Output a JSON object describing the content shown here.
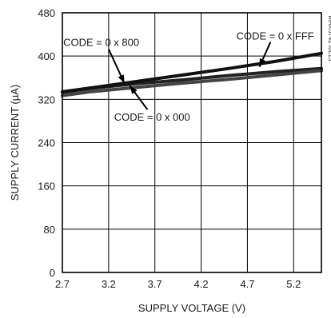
{
  "figure_id": "MAX5742 toc13",
  "chart_data": {
    "type": "line",
    "title": "",
    "xlabel": "SUPPLY VOLTAGE (V)",
    "ylabel": "SUPPLY CURRENT (µA)",
    "xlim": [
      2.7,
      5.5
    ],
    "ylim": [
      0,
      480
    ],
    "xticks": [
      2.7,
      3.2,
      3.7,
      4.2,
      4.7,
      5.2
    ],
    "xtick_labels": [
      "2.7",
      "3.2",
      "3.7",
      "4.2",
      "4.7",
      "5.2"
    ],
    "yticks": [
      0,
      80,
      160,
      240,
      320,
      400,
      480
    ],
    "ytick_labels": [
      "0",
      "80",
      "160",
      "240",
      "320",
      "400",
      "480"
    ],
    "grid": true,
    "series": [
      {
        "name": "CODE = 0 x 800",
        "color": "#222222",
        "x": [
          2.7,
          3.0,
          3.5,
          4.0,
          4.5,
          5.0,
          5.5
        ],
        "y": [
          333,
          340,
          349,
          356,
          364,
          371,
          377
        ]
      },
      {
        "name": "CODE = 0 x 000",
        "color": "#444444",
        "x": [
          2.7,
          3.0,
          3.5,
          4.0,
          4.5,
          5.0,
          5.5
        ],
        "y": [
          327,
          334,
          342,
          350,
          357,
          365,
          373
        ]
      },
      {
        "name": "CODE = 0 x FFF",
        "color": "#111111",
        "x": [
          2.7,
          3.0,
          3.5,
          4.0,
          4.5,
          5.0,
          5.5
        ],
        "y": [
          334,
          341,
          353,
          365,
          377,
          390,
          405
        ]
      }
    ],
    "annotations": [
      {
        "text": "CODE = 0 x 800",
        "series": 0,
        "label_at": [
          3.12,
          426
        ],
        "arrow_from": [
          3.2,
          413
        ],
        "arrow_to": [
          3.37,
          350
        ]
      },
      {
        "text": "CODE = 0 x FFF",
        "series": 2,
        "label_at": [
          5.0,
          438
        ],
        "arrow_from": [
          4.95,
          426
        ],
        "arrow_to": [
          4.83,
          380
        ]
      },
      {
        "text": "CODE = 0 x 000",
        "series": 1,
        "label_at": [
          3.67,
          288
        ],
        "arrow_from": [
          3.62,
          301
        ],
        "arrow_to": [
          3.43,
          345
        ]
      }
    ]
  }
}
